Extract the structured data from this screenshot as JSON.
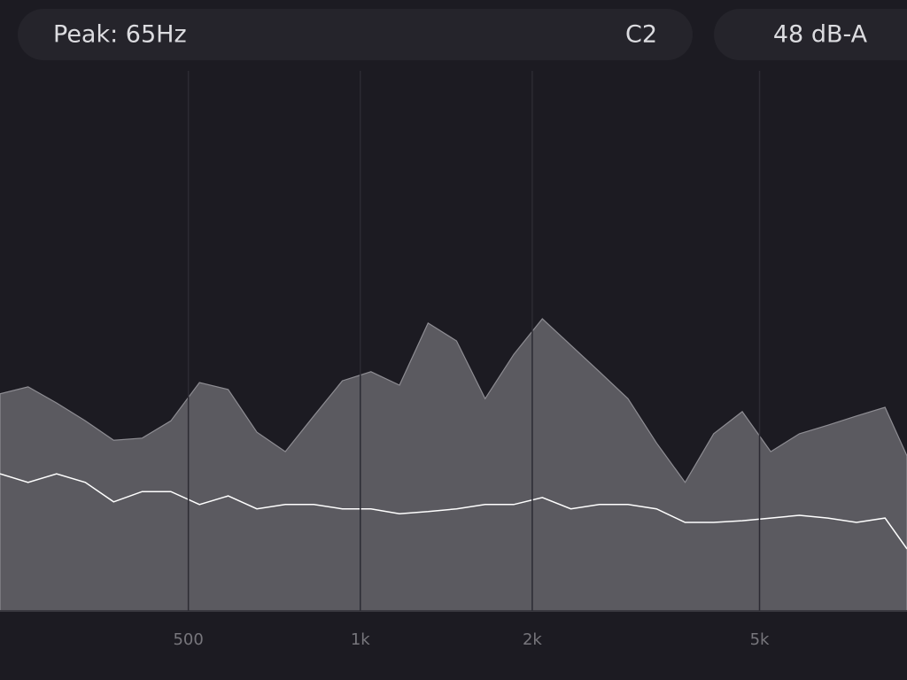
{
  "header": {
    "peak": "Peak: 65Hz",
    "note": "C2",
    "level": "48 dB-A"
  },
  "chart_data": {
    "type": "area",
    "xscale": "log",
    "x": [
      234,
      262,
      294,
      330,
      370,
      415,
      466,
      523,
      587,
      659,
      739,
      829,
      930,
      1044,
      1171,
      1314,
      1474,
      1654,
      1856,
      2083,
      2337,
      2622,
      2942,
      3301,
      3704,
      4156,
      4663,
      5232,
      5871,
      6587,
      7391,
      8293,
      9060
    ],
    "series": [
      {
        "color": "#5b5a60",
        "values": [
          40.2,
          41.5,
          38.5,
          35.2,
          31.6,
          32.0,
          35.2,
          42.3,
          41.0,
          33.1,
          29.5,
          36.1,
          42.6,
          44.3,
          41.8,
          53.3,
          50.0,
          39.3,
          47.5,
          54.1,
          49.2,
          44.3,
          39.3,
          31.1,
          23.8,
          32.8,
          36.9,
          29.5,
          32.8,
          34.4,
          36.1,
          37.7,
          28.7
        ]
      },
      {
        "color": "#ffffff",
        "values": [
          25.4,
          23.8,
          25.4,
          23.8,
          20.2,
          22.1,
          22.1,
          19.7,
          21.3,
          18.9,
          19.7,
          19.7,
          18.9,
          18.9,
          18.0,
          18.4,
          18.9,
          19.7,
          19.7,
          21.0,
          18.9,
          19.7,
          19.7,
          18.9,
          16.4,
          16.4,
          16.7,
          17.2,
          17.7,
          17.2,
          16.4,
          17.2,
          11.5
        ]
      }
    ],
    "xlim": [
      234,
      9060
    ],
    "ylim": [
      0,
      100
    ],
    "xticks": [
      500,
      {
        "value": 1000,
        "label": "1k"
      },
      {
        "value": 2000,
        "label": "2k"
      },
      {
        "value": 5000,
        "label": "5k"
      }
    ],
    "grid": true
  }
}
